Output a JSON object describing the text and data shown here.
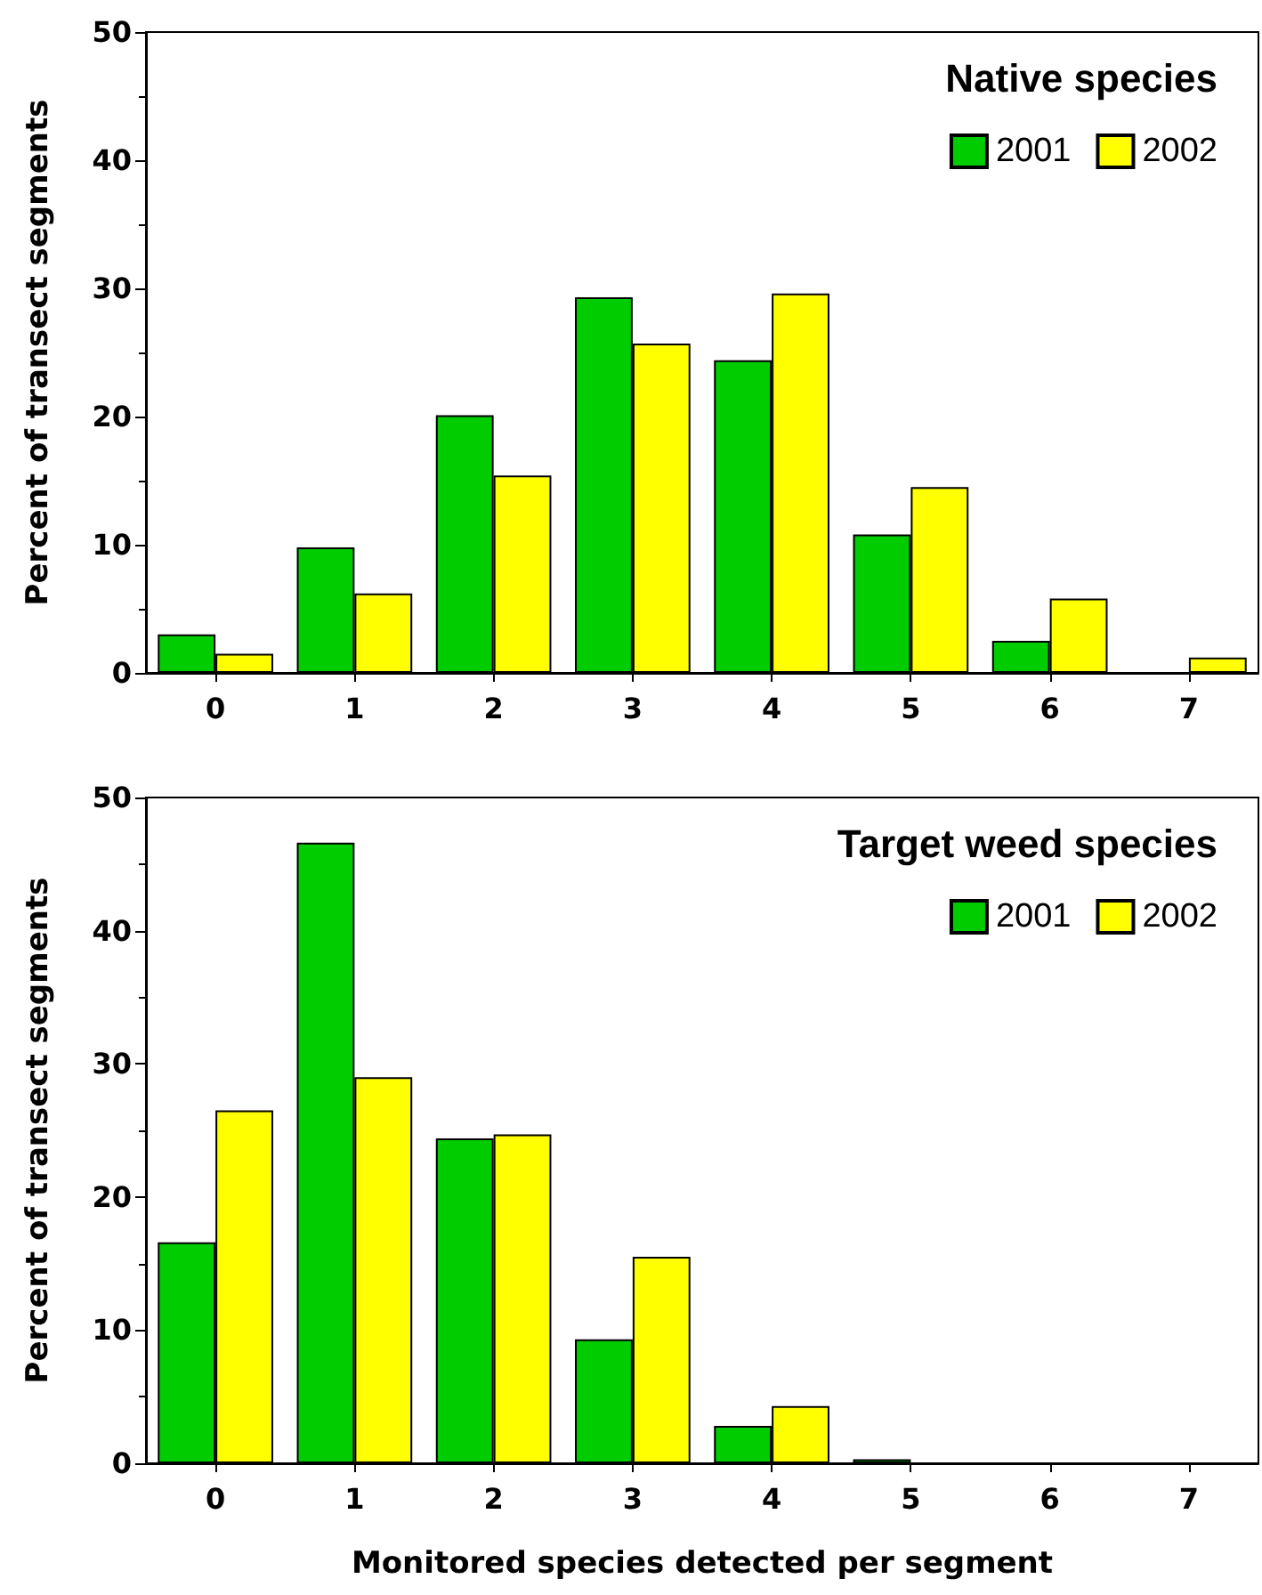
{
  "chart_data": [
    {
      "type": "bar",
      "legend_title": "Native species",
      "ylabel": "Percent of transect segments",
      "categories": [
        "0",
        "1",
        "2",
        "3",
        "4",
        "5",
        "6",
        "7"
      ],
      "series": [
        {
          "name": "2001",
          "color": "#00cc00",
          "values": [
            3.0,
            9.8,
            20.1,
            29.3,
            24.4,
            10.8,
            2.5,
            0
          ]
        },
        {
          "name": "2002",
          "color": "#ffff00",
          "values": [
            1.5,
            6.2,
            15.4,
            25.7,
            29.6,
            14.5,
            5.8,
            1.2
          ]
        }
      ],
      "ylim": [
        0,
        50
      ],
      "yticks": [
        0,
        10,
        20,
        30,
        40,
        50
      ],
      "legend": "top right"
    },
    {
      "type": "bar",
      "legend_title": "Target weed species",
      "ylabel": "Percent of transect segments",
      "xlabel": "Monitored species detected per segment",
      "categories": [
        "0",
        "1",
        "2",
        "3",
        "4",
        "5",
        "6",
        "7"
      ],
      "series": [
        {
          "name": "2001",
          "color": "#00cc00",
          "values": [
            16.6,
            46.6,
            24.4,
            9.3,
            2.8,
            0.3,
            0,
            0
          ]
        },
        {
          "name": "2002",
          "color": "#ffff00",
          "values": [
            26.5,
            29.0,
            24.7,
            15.5,
            4.3,
            0,
            0,
            0
          ]
        }
      ],
      "ylim": [
        0,
        50
      ],
      "yticks": [
        0,
        10,
        20,
        30,
        40,
        50
      ],
      "legend": "top right"
    }
  ]
}
